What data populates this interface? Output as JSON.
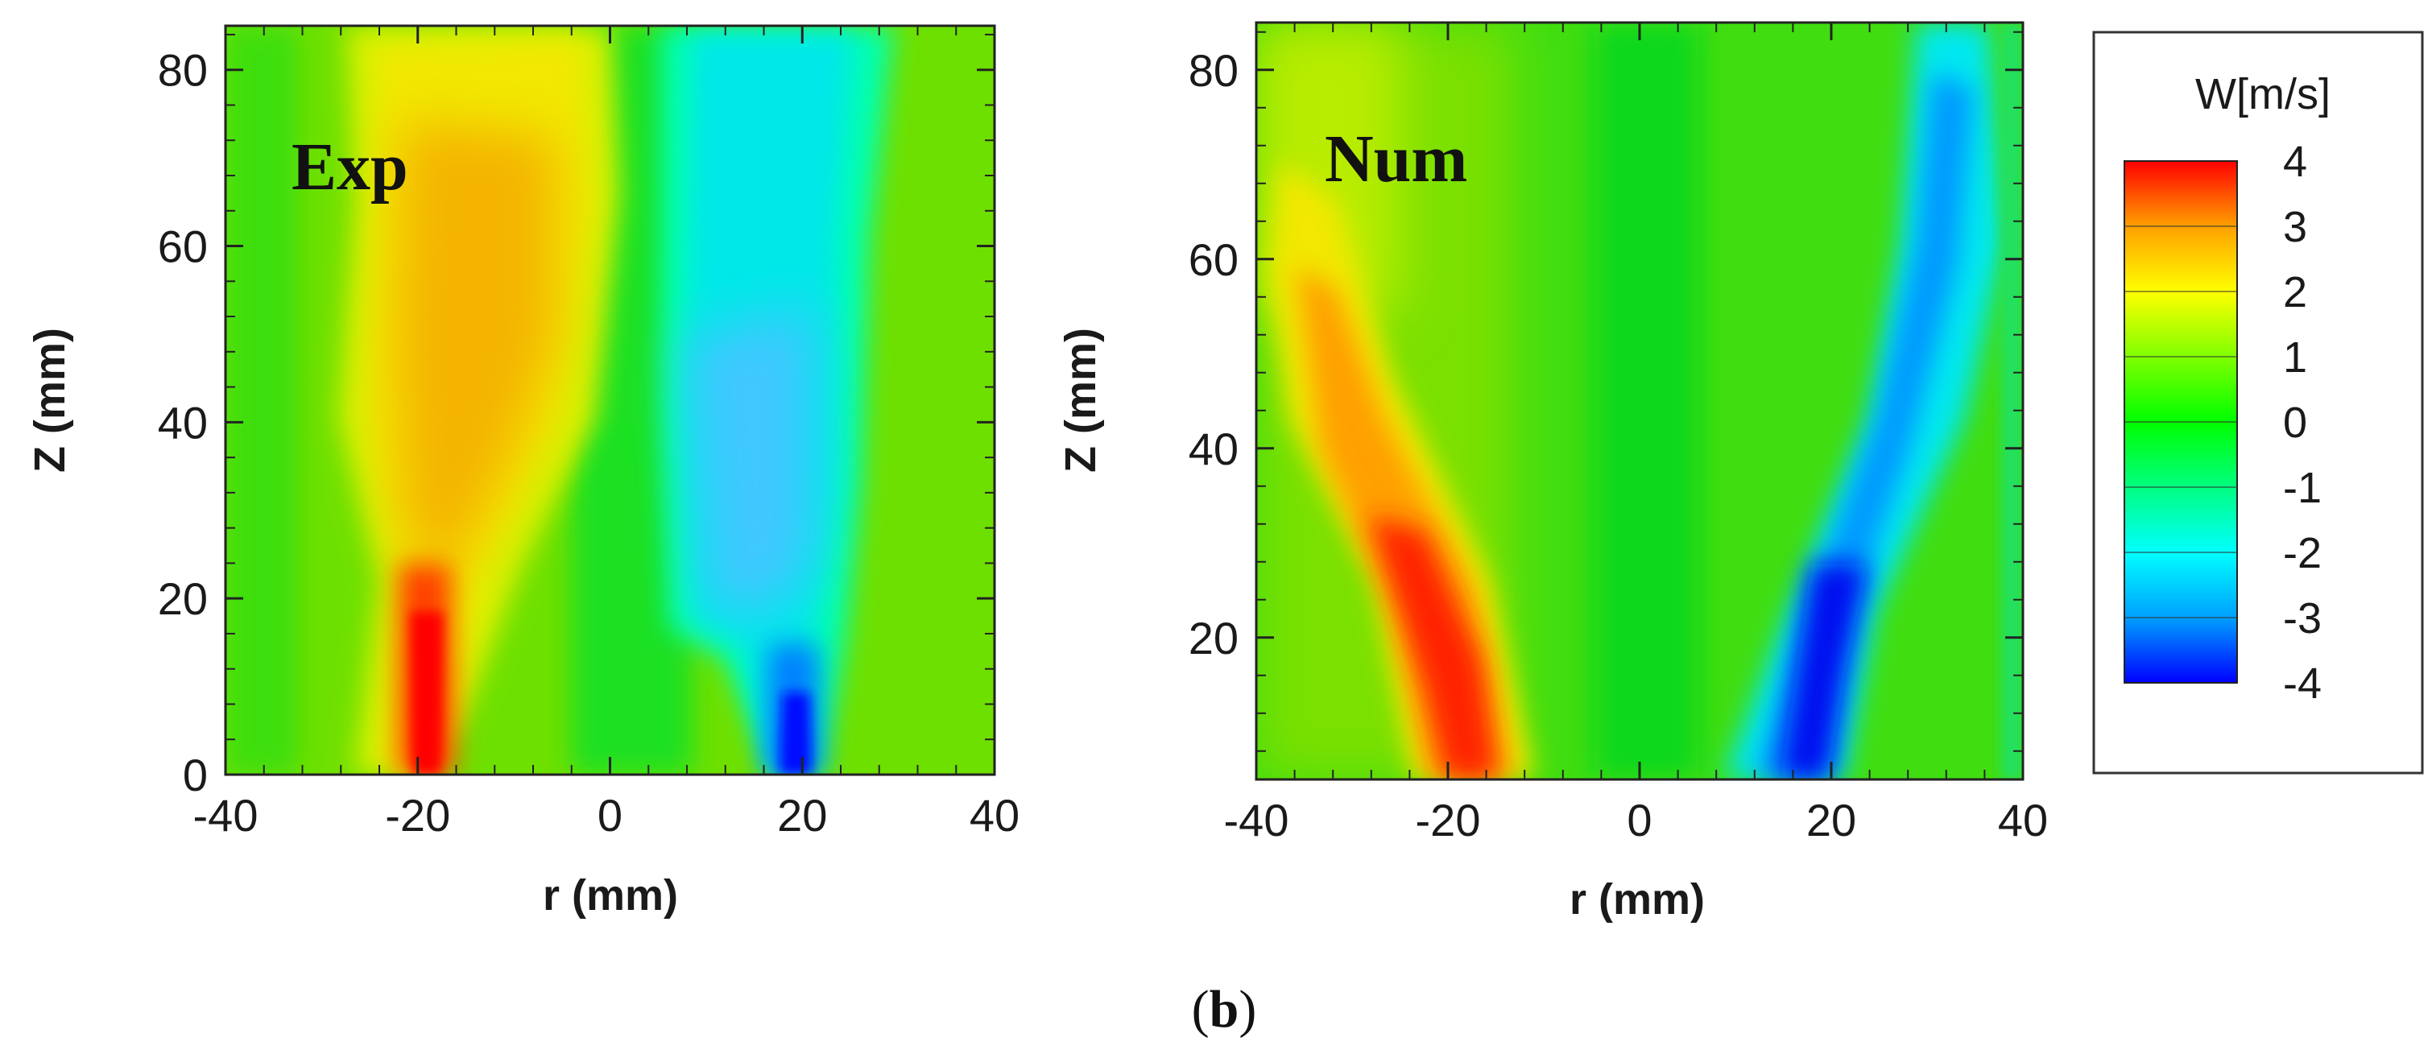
{
  "chart_data": [
    {
      "type": "heatmap",
      "panel": "Exp",
      "title": "Exp",
      "xlabel": "r (mm)",
      "ylabel": "Z (mm)",
      "xlim": [
        -40,
        40
      ],
      "ylim": [
        0,
        85
      ],
      "xticks": [
        "-40",
        "-20",
        "0",
        "20",
        "40"
      ],
      "yticks": [
        "0",
        "20",
        "40",
        "60",
        "80"
      ],
      "features": [
        {
          "sign": "positive",
          "r": -19,
          "z_range": [
            0,
            20
          ],
          "peak": 4
        },
        {
          "sign": "positive",
          "r": -12,
          "z_range": [
            20,
            85
          ],
          "peak": 2.5
        },
        {
          "sign": "negative",
          "r": 19,
          "z_range": [
            0,
            10
          ],
          "peak": -4
        },
        {
          "sign": "negative",
          "r": 12,
          "z_range": [
            15,
            85
          ],
          "peak": -2
        }
      ]
    },
    {
      "type": "heatmap",
      "panel": "Num",
      "title": "Num",
      "xlabel": "r (mm)",
      "ylabel": "Z (mm)",
      "xlim": [
        -40,
        40
      ],
      "ylim": [
        5,
        85
      ],
      "xticks": [
        "-40",
        "-20",
        "0",
        "20",
        "40"
      ],
      "yticks": [
        "20",
        "40",
        "60",
        "80"
      ],
      "features": [
        {
          "sign": "positive",
          "r_bottom": -18,
          "r_top": -32,
          "z_range": [
            5,
            65
          ],
          "peak": 4
        },
        {
          "sign": "negative",
          "r_bottom": 17,
          "r_top": 35,
          "z_range": [
            5,
            85
          ],
          "peak": -4
        }
      ]
    }
  ],
  "colorbar": {
    "title": "W[m/s]",
    "min": -4,
    "max": 4,
    "labels": [
      "4",
      "3",
      "2",
      "1",
      "0",
      "-1",
      "-2",
      "-3",
      "-4"
    ],
    "colors": [
      "#0000ff",
      "#00a0ff",
      "#00ffff",
      "#00ff80",
      "#00ff00",
      "#80ff00",
      "#ffff00",
      "#ffa000",
      "#ff0000"
    ]
  },
  "caption": {
    "open": "(",
    "letter": "b",
    "close": ")"
  }
}
